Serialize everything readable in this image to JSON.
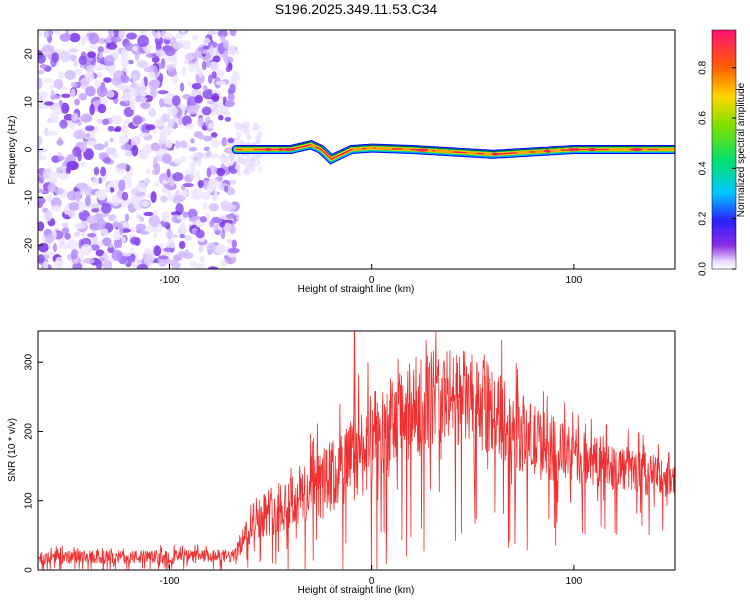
{
  "title": "S196.2025.349.11.53.C34",
  "chart_data": [
    {
      "type": "heatmap",
      "title": "S196.2025.349.11.53.C34",
      "xlabel": "Height of straight line (km)",
      "ylabel": "Frequency (Hz)",
      "xlim": [
        -165,
        150
      ],
      "ylim": [
        -25,
        25
      ],
      "x_ticks": [
        -100,
        0,
        100
      ],
      "x_tick_labels": [
        "-100",
        "0",
        "100"
      ],
      "y_ticks": [
        -20,
        -10,
        0,
        10,
        20
      ],
      "y_tick_labels": [
        "-20",
        "-10",
        "0",
        "10",
        "20"
      ],
      "colorbar": {
        "label": "Normalized spectral amplitude",
        "range": [
          0,
          0.95
        ],
        "ticks": [
          0,
          0.2,
          0.4,
          0.6,
          0.8
        ],
        "tick_labels": [
          "0.0",
          "0.2",
          "0.4",
          "0.6",
          "0.8"
        ]
      },
      "noise_region_x": [
        -165,
        -67
      ],
      "signal_start_x": -67,
      "signal_track": {
        "x": [
          -67,
          -40,
          -30,
          -25,
          -20,
          -15,
          -10,
          0,
          20,
          40,
          60,
          80,
          100,
          105,
          150
        ],
        "freq_hz": [
          0,
          0,
          1,
          0,
          -2,
          -1,
          0,
          0.3,
          0,
          -0.5,
          -1,
          -0.5,
          0,
          0,
          0
        ]
      }
    },
    {
      "type": "line",
      "xlabel": "Height of straight line (km)",
      "ylabel": "SNR (10 * v/v)",
      "xlim": [
        -165,
        150
      ],
      "ylim": [
        0,
        345
      ],
      "x_ticks": [
        -100,
        0,
        100
      ],
      "x_tick_labels": [
        "-100",
        "0",
        "100"
      ],
      "y_ticks": [
        0,
        100,
        200,
        300
      ],
      "y_tick_labels": [
        "0",
        "100",
        "200",
        "300"
      ],
      "series": [
        {
          "name": "SNR",
          "color": "#f03030",
          "envelope_x": [
            -165,
            -100,
            -68,
            -58,
            -40,
            -20,
            0,
            20,
            30,
            45,
            60,
            80,
            100,
            120,
            150
          ],
          "envelope_mean": [
            18,
            19,
            20,
            75,
            100,
            130,
            185,
            230,
            250,
            250,
            230,
            185,
            165,
            150,
            130
          ],
          "envelope_spread": [
            10,
            10,
            10,
            30,
            45,
            55,
            70,
            75,
            70,
            70,
            65,
            55,
            40,
            35,
            28
          ]
        }
      ]
    }
  ]
}
